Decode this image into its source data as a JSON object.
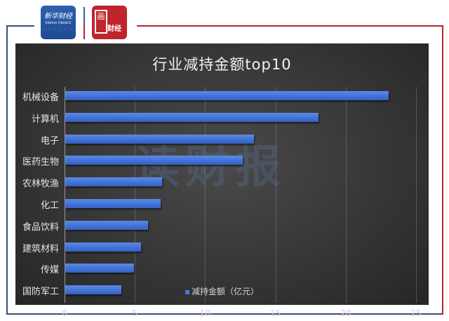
{
  "header": {
    "logo_left": {
      "cn": "新华财经",
      "en": "XINHUA FINANCE",
      "dots": "· · · · · ·"
    },
    "logo_right": {
      "big": "画",
      "text": "财经"
    }
  },
  "chart": {
    "title": "行业减持金额top10",
    "watermark": "读财报",
    "legend": "减持金额（亿元）",
    "colors": {
      "bar": "#4272d6",
      "background": "#3a3a3a",
      "text": "#e6e6e6"
    }
  },
  "chart_data": {
    "type": "bar",
    "orientation": "horizontal",
    "title": "行业减持金额top10",
    "xlabel": "",
    "ylabel": "",
    "categories": [
      "机械设备",
      "计算机",
      "电子",
      "医药生物",
      "农林牧渔",
      "化工",
      "食品饮料",
      "建筑材料",
      "传媒",
      "国防军工"
    ],
    "series": [
      {
        "name": "减持金额（亿元）",
        "values": [
          23.0,
          18.0,
          13.4,
          12.6,
          6.9,
          6.8,
          5.9,
          5.4,
          4.9,
          4.0
        ]
      }
    ],
    "xlim": [
      0,
      25
    ],
    "xticks": [
      "0",
      "5",
      "10",
      "15",
      "20",
      "25"
    ],
    "grid": true,
    "legend_position": "bottom"
  }
}
